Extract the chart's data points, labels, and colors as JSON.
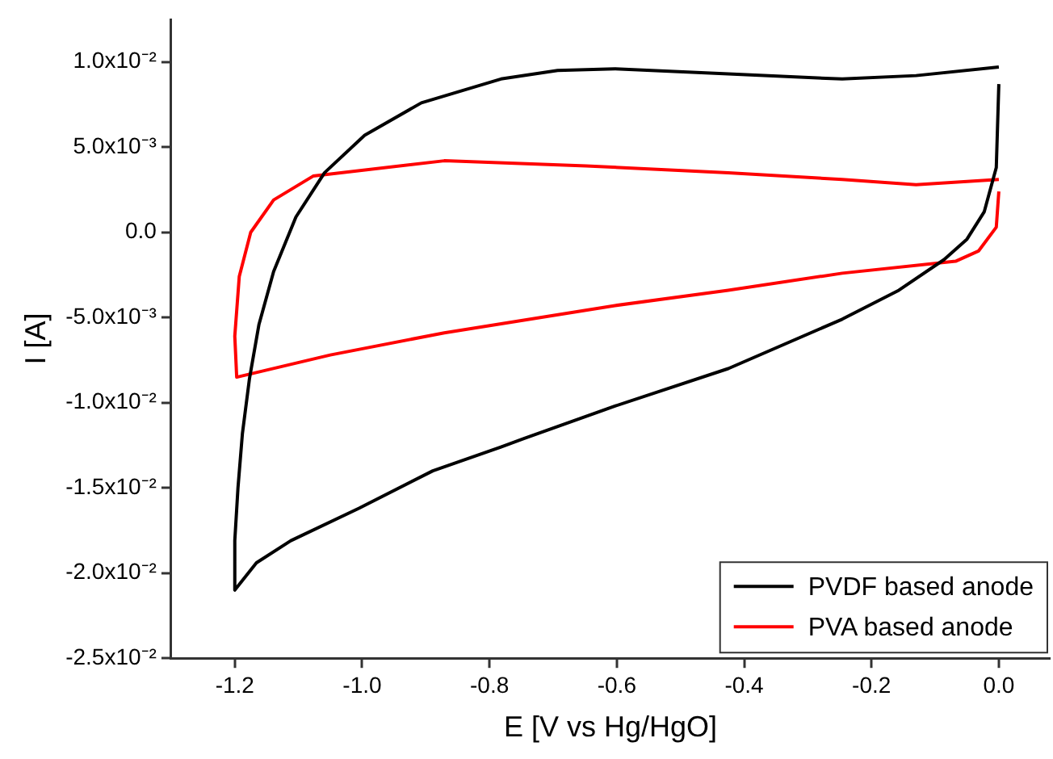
{
  "chart_data": {
    "type": "line",
    "xlabel": "E [V vs Hg/HgO]",
    "ylabel": "I [A]",
    "xlim": [
      -1.3,
      0.08
    ],
    "xticks": [
      {
        "value": -1.2,
        "label": "-1.2"
      },
      {
        "value": -1.0,
        "label": "-1.0"
      },
      {
        "value": -0.8,
        "label": "-0.8"
      },
      {
        "value": -0.6,
        "label": "-0.6"
      },
      {
        "value": -0.4,
        "label": "-0.4"
      },
      {
        "value": -0.2,
        "label": "-0.2"
      },
      {
        "value": 0,
        "label": "0.0"
      }
    ],
    "ylim": [
      -0.025,
      0.0125
    ],
    "yticks": [
      {
        "value": -0.025,
        "label": "-2.5x10⁻²"
      },
      {
        "value": -0.02,
        "label": "-2.0x10⁻²"
      },
      {
        "value": -0.015,
        "label": "-1.5x10⁻²"
      },
      {
        "value": -0.01,
        "label": "-1.0x10⁻²"
      },
      {
        "value": -0.005,
        "label": "-5.0x10⁻³"
      },
      {
        "value": 0,
        "label": "0.0"
      },
      {
        "value": 0.005,
        "label": "5.0x10⁻³"
      },
      {
        "value": 0.01,
        "label": "1.0x10⁻²"
      }
    ],
    "grid": false,
    "legend": "bottom right",
    "marker": "none",
    "line_style": "solid",
    "series": [
      {
        "name": "PVDF based anode",
        "color": "#000000",
        "x": [
          0,
          -0.004,
          -0.023,
          -0.05,
          -0.086,
          -0.157,
          -0.246,
          -0.425,
          -0.603,
          -0.746,
          -0.782,
          -0.889,
          -1.005,
          -1.112,
          -1.166,
          -1.2,
          -1.2,
          -1.195,
          -1.188,
          -1.177,
          -1.162,
          -1.139,
          -1.104,
          -1.059,
          -0.996,
          -0.907,
          -0.782,
          -0.693,
          -0.603,
          -0.425,
          -0.246,
          -0.13,
          0
        ],
        "values": [
          0.0087,
          0.0038,
          0.0012,
          -0.0004,
          -0.0016,
          -0.0034,
          -0.0051,
          -0.008,
          -0.0102,
          -0.0121,
          -0.0126,
          -0.014,
          -0.0162,
          -0.0181,
          -0.0194,
          -0.021,
          -0.0181,
          -0.015,
          -0.0118,
          -0.0086,
          -0.0054,
          -0.0023,
          0.0009,
          0.0035,
          0.0057,
          0.0076,
          0.009,
          0.0095,
          0.0096,
          0.0093,
          0.009,
          0.0092,
          0.0097
        ]
      },
      {
        "name": "PVA based anode",
        "color": "#ff0000",
        "x": [
          0,
          -0.004,
          -0.032,
          -0.068,
          -0.246,
          -0.425,
          -0.603,
          -0.871,
          -1.05,
          -1.197,
          -1.2,
          -1.193,
          -1.175,
          -1.139,
          -1.077,
          -0.871,
          -0.648,
          -0.425,
          -0.246,
          -0.13,
          0
        ],
        "values": [
          0.0024,
          0.0003,
          -0.0011,
          -0.0017,
          -0.0024,
          -0.0034,
          -0.0043,
          -0.0059,
          -0.0072,
          -0.0085,
          -0.0061,
          -0.0026,
          0,
          0.0019,
          0.0033,
          0.0042,
          0.0039,
          0.0035,
          0.0031,
          0.0028,
          0.0031
        ]
      }
    ]
  }
}
